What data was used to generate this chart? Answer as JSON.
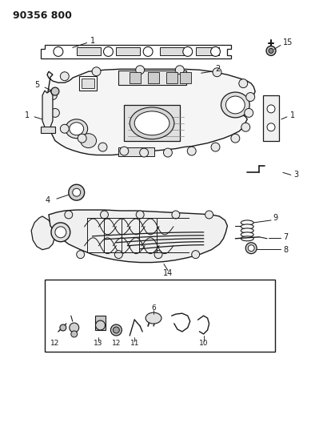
{
  "title": "90356 800",
  "bg_color": "#ffffff",
  "line_color": "#1a1a1a",
  "fig_width": 3.99,
  "fig_height": 5.33,
  "dpi": 100
}
